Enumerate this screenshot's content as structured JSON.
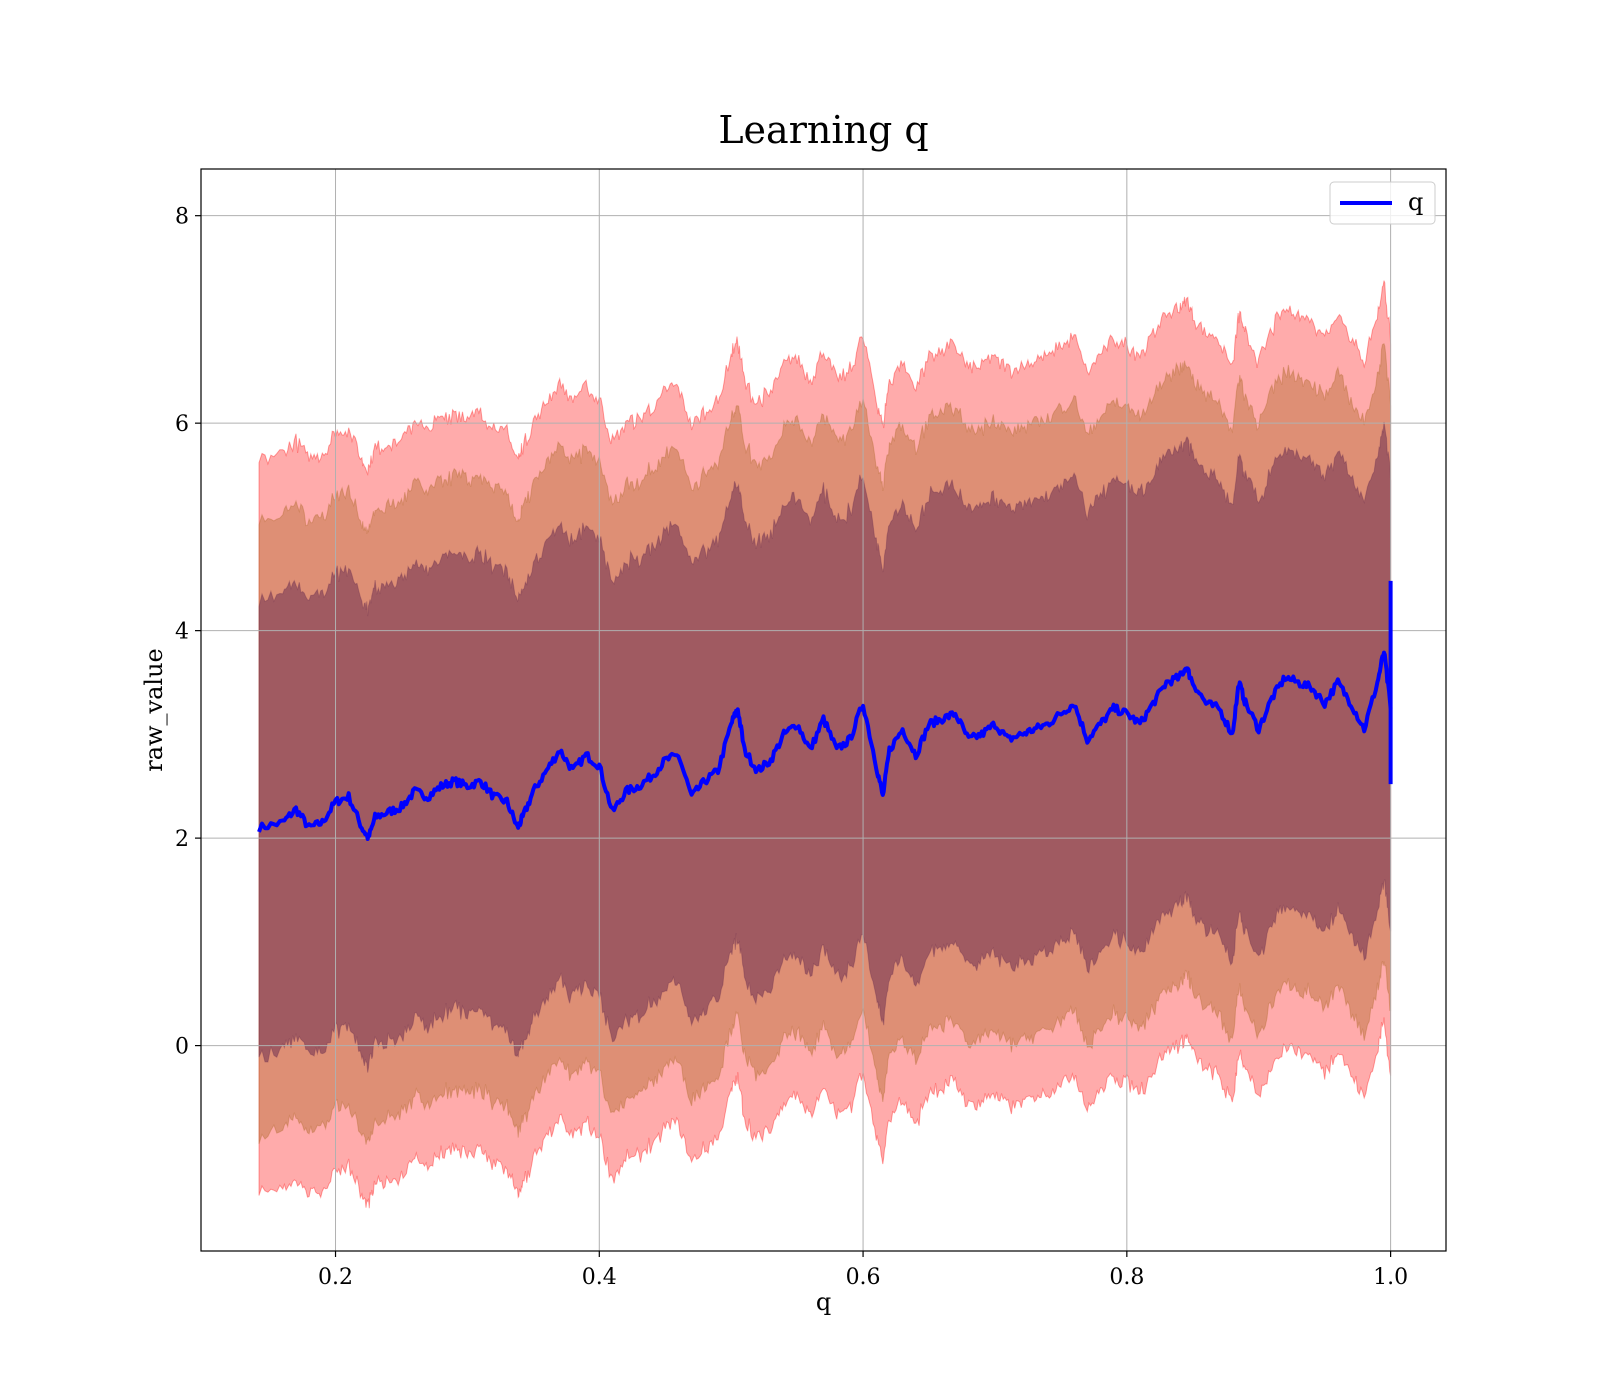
{
  "chart_data": {
    "type": "area",
    "title": "Learning q",
    "xlabel": "q",
    "ylabel": "raw_value",
    "xlim": [
      0.098,
      1.042
    ],
    "ylim": [
      -1.98,
      8.45
    ],
    "xticks": [
      0.2,
      0.4,
      0.6,
      0.8,
      1.0
    ],
    "xtick_labels": [
      "0.2",
      "0.4",
      "0.6",
      "0.8",
      "1.0"
    ],
    "yticks": [
      0,
      2,
      4,
      6,
      8
    ],
    "ytick_labels": [
      "0",
      "2",
      "4",
      "6",
      "8"
    ],
    "grid": true,
    "legend": {
      "entries": [
        {
          "label": "q",
          "color": "#0000ff"
        }
      ],
      "position": "top-right"
    },
    "series": [
      {
        "name": "q",
        "color": "#0000ff",
        "x": [
          0.142,
          0.16,
          0.17,
          0.18,
          0.19,
          0.2,
          0.21,
          0.22,
          0.225,
          0.23,
          0.24,
          0.25,
          0.26,
          0.27,
          0.28,
          0.29,
          0.3,
          0.31,
          0.32,
          0.33,
          0.338,
          0.342,
          0.35,
          0.36,
          0.37,
          0.38,
          0.39,
          0.4,
          0.41,
          0.42,
          0.43,
          0.44,
          0.45,
          0.46,
          0.47,
          0.48,
          0.49,
          0.5,
          0.505,
          0.51,
          0.52,
          0.53,
          0.54,
          0.55,
          0.56,
          0.57,
          0.58,
          0.59,
          0.6,
          0.61,
          0.615,
          0.62,
          0.63,
          0.64,
          0.65,
          0.66,
          0.67,
          0.68,
          0.69,
          0.7,
          0.71,
          0.72,
          0.73,
          0.74,
          0.75,
          0.76,
          0.77,
          0.78,
          0.79,
          0.8,
          0.81,
          0.82,
          0.83,
          0.84,
          0.845,
          0.85,
          0.86,
          0.87,
          0.88,
          0.885,
          0.89,
          0.9,
          0.91,
          0.92,
          0.93,
          0.94,
          0.95,
          0.96,
          0.97,
          0.98,
          0.99,
          0.995,
          1.0
        ],
        "y": [
          2.1,
          2.15,
          2.28,
          2.1,
          2.15,
          2.35,
          2.4,
          2.1,
          2.0,
          2.2,
          2.25,
          2.3,
          2.45,
          2.4,
          2.5,
          2.55,
          2.5,
          2.55,
          2.4,
          2.35,
          2.1,
          2.2,
          2.45,
          2.65,
          2.85,
          2.65,
          2.8,
          2.7,
          2.25,
          2.45,
          2.5,
          2.6,
          2.75,
          2.8,
          2.4,
          2.55,
          2.65,
          3.1,
          3.25,
          2.85,
          2.65,
          2.75,
          3.0,
          3.1,
          2.85,
          3.15,
          2.85,
          2.95,
          3.3,
          2.7,
          2.4,
          2.85,
          3.05,
          2.8,
          3.1,
          3.15,
          3.2,
          2.95,
          3.0,
          3.1,
          2.95,
          3.0,
          3.05,
          3.1,
          3.2,
          3.3,
          2.95,
          3.1,
          3.25,
          3.2,
          3.1,
          3.3,
          3.5,
          3.55,
          3.65,
          3.5,
          3.3,
          3.25,
          3.0,
          3.5,
          3.3,
          3.05,
          3.35,
          3.55,
          3.5,
          3.45,
          3.3,
          3.5,
          3.3,
          3.05,
          3.5,
          3.8,
          3.25
        ]
      }
    ],
    "bands": [
      {
        "name": "outer",
        "color": "#ff0000",
        "opacity": 0.33,
        "half_width": 3.55
      },
      {
        "name": "middle",
        "color": "#b06a2a",
        "opacity": 0.42,
        "half_width": 2.95
      },
      {
        "name": "inner",
        "color": "#6e3050",
        "opacity": 0.55,
        "half_width": 2.2
      }
    ]
  }
}
